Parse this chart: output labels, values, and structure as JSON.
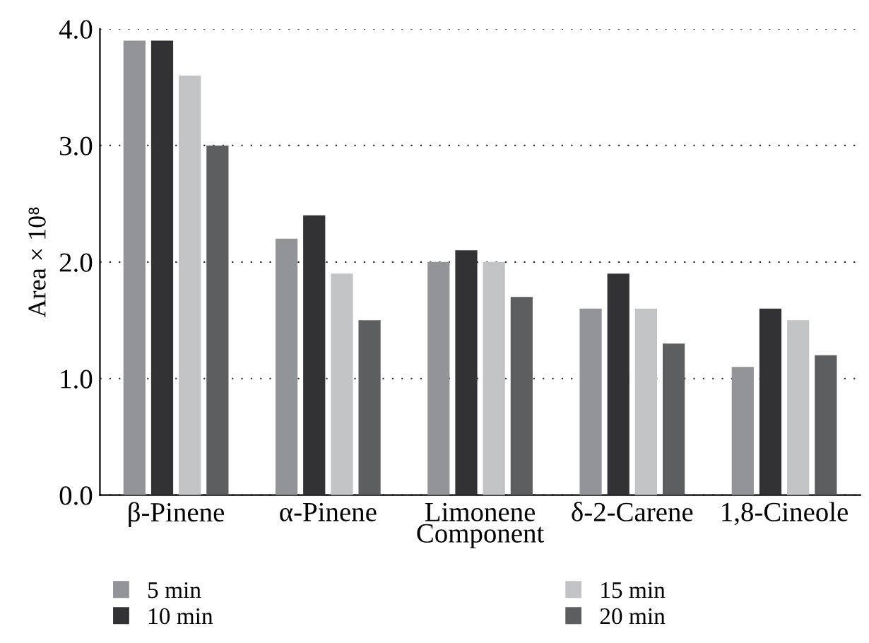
{
  "chart_data": {
    "type": "bar",
    "categories": [
      "β-Pinene",
      "α-Pinene",
      "Limonene",
      "δ-2-Carene",
      "1,8-Cineole"
    ],
    "xlabel": "Component",
    "ylabel": "Area × 10⁸",
    "series": [
      {
        "name": "5 min",
        "color": "#939497",
        "values": [
          3.9,
          2.2,
          2.0,
          1.6,
          1.1
        ]
      },
      {
        "name": "10 min",
        "color": "#323133",
        "values": [
          3.9,
          2.4,
          2.1,
          1.9,
          1.6
        ]
      },
      {
        "name": "15 min",
        "color": "#c2c3c4",
        "values": [
          3.6,
          1.9,
          2.0,
          1.6,
          1.5
        ]
      },
      {
        "name": "20 min",
        "color": "#5d5e60",
        "values": [
          3.0,
          1.5,
          1.7,
          1.3,
          1.2
        ]
      }
    ],
    "ylim": [
      0,
      4
    ],
    "yticks": [
      {
        "value": 0,
        "label": "0.0"
      },
      {
        "value": 1,
        "label": "1.0"
      },
      {
        "value": 2,
        "label": "2.0"
      },
      {
        "value": 3,
        "label": "3.0"
      },
      {
        "value": 4,
        "label": "4.0"
      }
    ],
    "grid": "y",
    "legend": "bottom"
  }
}
